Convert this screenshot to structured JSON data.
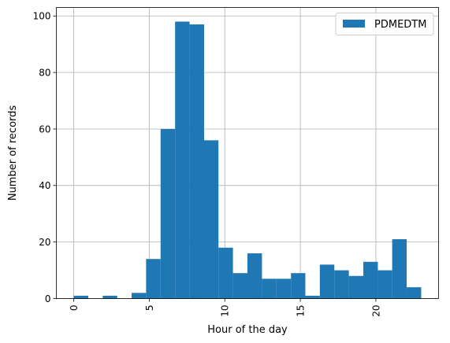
{
  "chart_data": {
    "type": "bar",
    "title": "",
    "xlabel": "Hour of the day",
    "ylabel": "Number of records",
    "xlim": [
      -1.15,
      24.15
    ],
    "ylim": [
      0,
      103
    ],
    "xticks": [
      0,
      5,
      10,
      15,
      20
    ],
    "xtick_labels": [
      "0",
      "5",
      "10",
      "15",
      "20"
    ],
    "xtick_rotation": 90,
    "yticks": [
      0,
      20,
      40,
      60,
      80,
      100
    ],
    "ytick_labels": [
      "0",
      "20",
      "40",
      "60",
      "80",
      "100"
    ],
    "grid": true,
    "legend_position": "upper right",
    "series": [
      {
        "name": "PDMEDTM",
        "color": "#1f77b4",
        "bins": [
          {
            "x0": 0.0,
            "x1": 0.96,
            "value": 1
          },
          {
            "x0": 0.96,
            "x1": 1.92,
            "value": 0
          },
          {
            "x0": 1.92,
            "x1": 2.88,
            "value": 1
          },
          {
            "x0": 2.88,
            "x1": 3.83,
            "value": 0
          },
          {
            "x0": 3.83,
            "x1": 4.79,
            "value": 2
          },
          {
            "x0": 4.79,
            "x1": 5.75,
            "value": 14
          },
          {
            "x0": 5.75,
            "x1": 6.71,
            "value": 60
          },
          {
            "x0": 6.71,
            "x1": 7.67,
            "value": 98
          },
          {
            "x0": 7.67,
            "x1": 8.63,
            "value": 97
          },
          {
            "x0": 8.63,
            "x1": 9.58,
            "value": 56
          },
          {
            "x0": 9.58,
            "x1": 10.54,
            "value": 18
          },
          {
            "x0": 10.54,
            "x1": 11.5,
            "value": 9
          },
          {
            "x0": 11.5,
            "x1": 12.46,
            "value": 16
          },
          {
            "x0": 12.46,
            "x1": 13.42,
            "value": 7
          },
          {
            "x0": 13.42,
            "x1": 14.38,
            "value": 7
          },
          {
            "x0": 14.38,
            "x1": 15.33,
            "value": 9
          },
          {
            "x0": 15.33,
            "x1": 16.29,
            "value": 1
          },
          {
            "x0": 16.29,
            "x1": 17.25,
            "value": 12
          },
          {
            "x0": 17.25,
            "x1": 18.21,
            "value": 10
          },
          {
            "x0": 18.21,
            "x1": 19.17,
            "value": 8
          },
          {
            "x0": 19.17,
            "x1": 20.13,
            "value": 13
          },
          {
            "x0": 20.13,
            "x1": 21.08,
            "value": 10
          },
          {
            "x0": 21.08,
            "x1": 22.04,
            "value": 21
          },
          {
            "x0": 22.04,
            "x1": 23.0,
            "value": 4
          }
        ]
      }
    ]
  }
}
